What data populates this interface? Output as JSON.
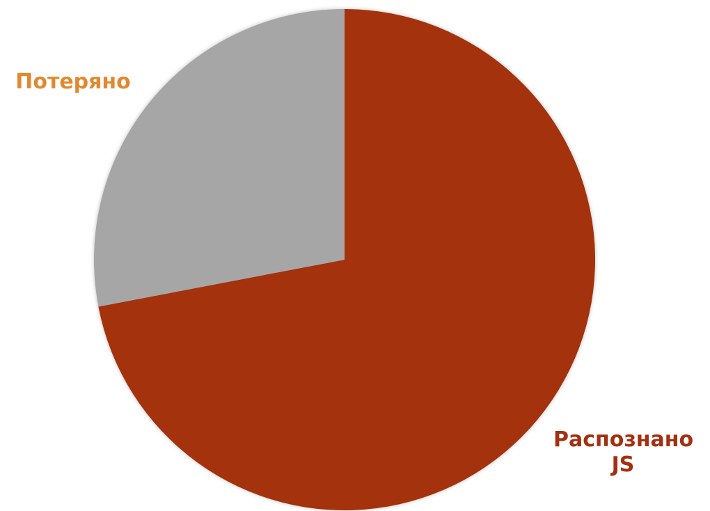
{
  "chart_data": {
    "type": "pie",
    "categories": [
      "Распознано JS",
      "Потеряно"
    ],
    "values": [
      72,
      28
    ],
    "colors": [
      "#a33011",
      "#a6a6a6"
    ],
    "label_colors": [
      "#a33011",
      "#e0892f"
    ],
    "start_angle": 0,
    "direction": "clockwise"
  }
}
